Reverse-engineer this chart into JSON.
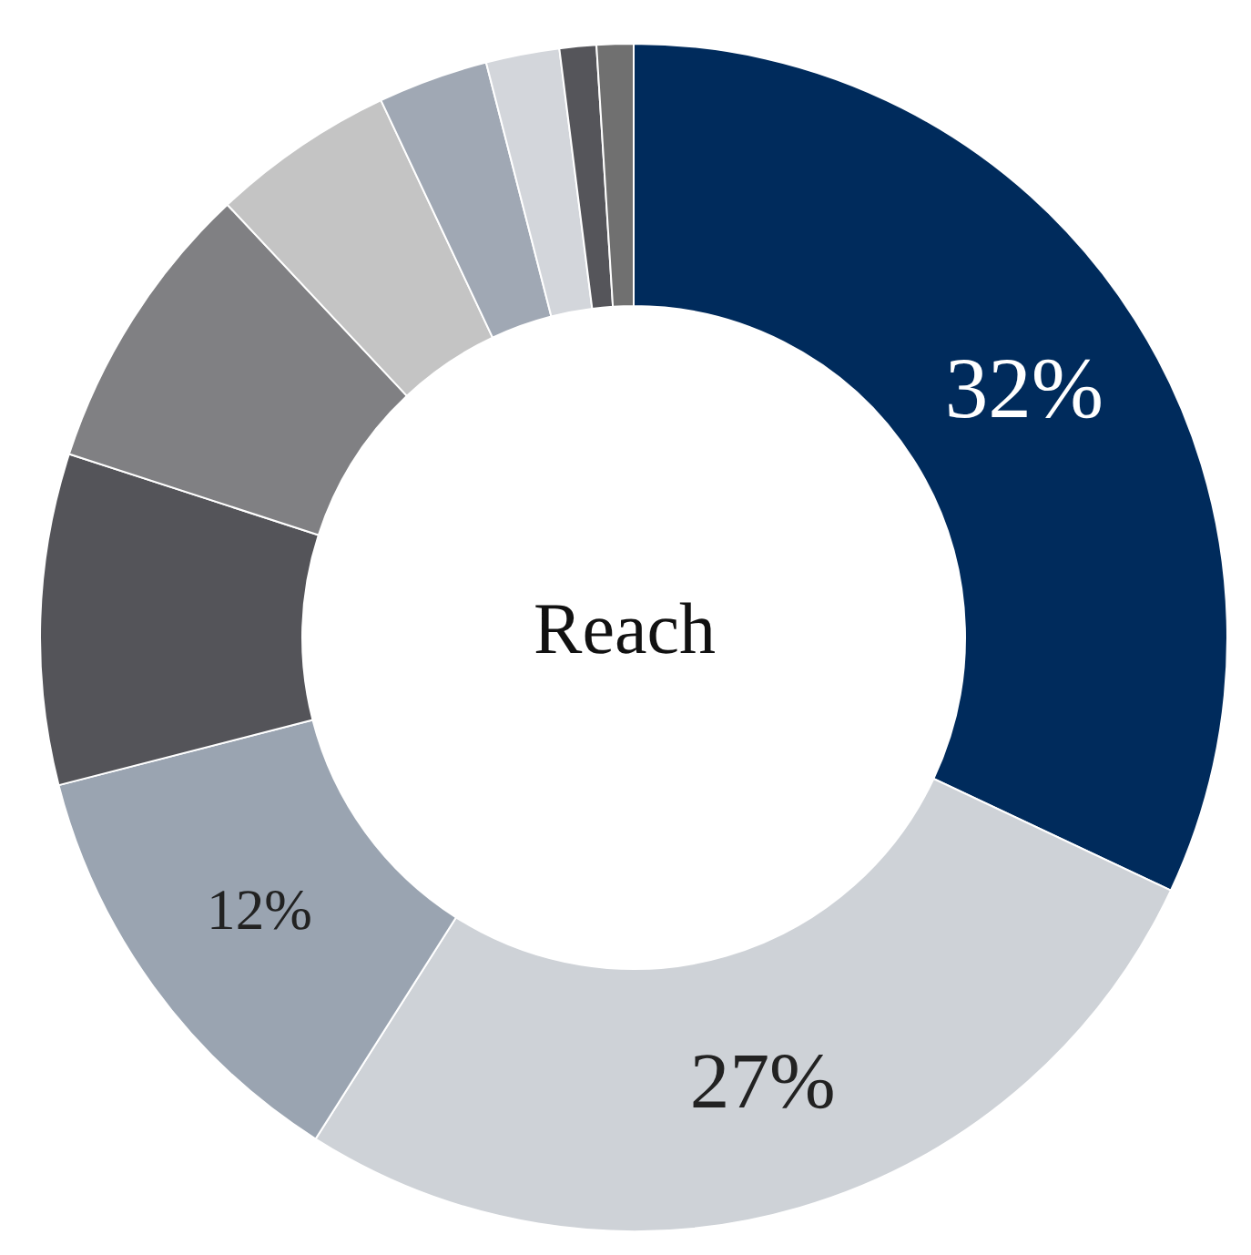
{
  "chart_data": {
    "type": "donut",
    "title": "Reach",
    "categories": [
      null,
      null,
      null,
      null,
      null,
      null,
      null,
      null,
      null,
      null
    ],
    "values": [
      32,
      27,
      12,
      9,
      8,
      5,
      3,
      2,
      1,
      1
    ],
    "colors": [
      "#002b5c",
      "#ced2d7",
      "#9aa4b1",
      "#545459",
      "#808083",
      "#c4c4c4",
      "#a0a8b4",
      "#d3d6db",
      "#55555a",
      "#707070"
    ],
    "value_labels": [
      "32%",
      "27%",
      "12%",
      null,
      null,
      null,
      null,
      null,
      null,
      null
    ],
    "legend": false
  }
}
